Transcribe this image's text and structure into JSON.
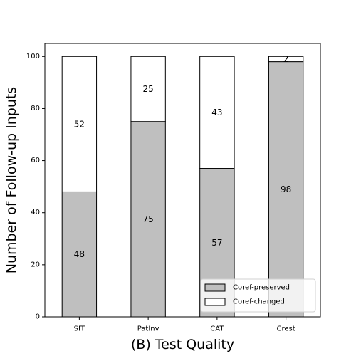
{
  "chart_data": {
    "type": "bar",
    "stacked": true,
    "title": "",
    "xlabel": "(B) Test Quality",
    "ylabel": "Number of Follow-up Inputs",
    "categories": [
      "SIT",
      "PatInv",
      "CAT",
      "Crest"
    ],
    "series": [
      {
        "name": "Coref-preserved",
        "values": [
          48,
          75,
          57,
          98
        ],
        "color": "#bfbfbf"
      },
      {
        "name": "Coref-changed",
        "values": [
          52,
          25,
          43,
          2
        ],
        "color": "#ffffff"
      }
    ],
    "ylim": [
      0,
      105
    ],
    "yticks": [
      0,
      20,
      40,
      60,
      80,
      100
    ],
    "grid": false,
    "legend": {
      "position": "lower-right"
    }
  }
}
